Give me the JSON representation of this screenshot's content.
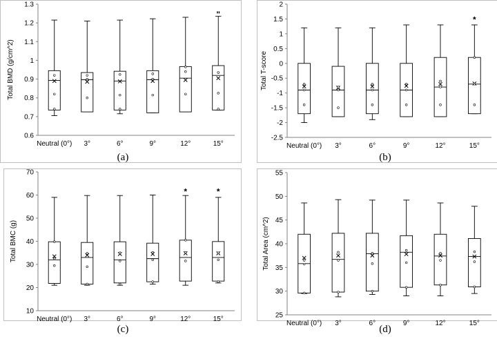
{
  "chart_data": [
    {
      "type": "box",
      "panel_label": "(a)",
      "ylabel": "Total BMD (g/cm^2)",
      "categories": [
        "Neutral (0°)",
        "3°",
        "6°",
        "9°",
        "12°",
        "15°"
      ],
      "ylim": [
        0.6,
        1.3
      ],
      "yticks": [
        "0.6",
        "0.7",
        "0.8",
        "0.9",
        "1",
        "1.1",
        "1.2",
        "1.3"
      ],
      "boxes": [
        {
          "min": 0.705,
          "q1": 0.735,
          "median": 0.893,
          "q3": 0.945,
          "max": 1.215,
          "mean": 0.89,
          "points": [
            0.92,
            0.82,
            0.74
          ]
        },
        {
          "min": 0.725,
          "q1": 0.725,
          "median": 0.897,
          "q3": 0.935,
          "max": 1.21,
          "mean": 0.886,
          "points": [
            0.92,
            0.8,
            0.9
          ]
        },
        {
          "min": 0.715,
          "q1": 0.735,
          "median": 0.89,
          "q3": 0.942,
          "max": 1.215,
          "mean": 0.888,
          "points": [
            0.925,
            0.815,
            0.74
          ]
        },
        {
          "min": 0.72,
          "q1": 0.72,
          "median": 0.897,
          "q3": 0.945,
          "max": 1.222,
          "mean": 0.89,
          "points": [
            0.928,
            0.815,
            0.9
          ]
        },
        {
          "min": 0.725,
          "q1": 0.725,
          "median": 0.905,
          "q3": 0.967,
          "max": 1.23,
          "mean": 0.895,
          "points": [
            0.94,
            0.82,
            0.965
          ]
        },
        {
          "min": 0.735,
          "q1": 0.735,
          "median": 0.92,
          "q3": 0.972,
          "max": 1.235,
          "mean": 0.905,
          "points": [
            0.935,
            0.825,
            0.74
          ]
        }
      ],
      "annotations": [
        {
          "category_index": 5,
          "value": 1.245,
          "text": "\""
        }
      ]
    },
    {
      "type": "box",
      "panel_label": "(b)",
      "ylabel": "Total T-score",
      "categories": [
        "Neutral (0°)",
        "3°",
        "6°",
        "9°",
        "12°",
        "15°"
      ],
      "ylim": [
        -2.5,
        2
      ],
      "yticks": [
        "-2.5",
        "-2",
        "-1.5",
        "-1",
        "-0.5",
        "0",
        "0.5",
        "1",
        "1.5",
        "2"
      ],
      "boxes": [
        {
          "min": -2.0,
          "q1": -1.7,
          "median": -0.9,
          "q3": 0.0,
          "max": 1.2,
          "mean": -0.78,
          "points": [
            -0.7,
            -1.4,
            -0.9
          ]
        },
        {
          "min": -1.8,
          "q1": -1.8,
          "median": -0.9,
          "q3": -0.1,
          "max": 1.2,
          "mean": -0.82,
          "points": [
            -0.8,
            -1.5,
            -0.9
          ]
        },
        {
          "min": -1.9,
          "q1": -1.7,
          "median": -0.9,
          "q3": 0.0,
          "max": 1.2,
          "mean": -0.78,
          "points": [
            -0.7,
            -1.4,
            -0.9
          ]
        },
        {
          "min": -1.8,
          "q1": -1.8,
          "median": -0.9,
          "q3": 0.0,
          "max": 1.3,
          "mean": -0.76,
          "points": [
            -0.7,
            -1.4,
            -0.9
          ]
        },
        {
          "min": -1.8,
          "q1": -1.8,
          "median": -0.8,
          "q3": 0.2,
          "max": 1.3,
          "mean": -0.7,
          "points": [
            -0.6,
            -1.4,
            -0.8
          ]
        },
        {
          "min": -1.7,
          "q1": -1.7,
          "median": -0.7,
          "q3": 0.2,
          "max": 1.3,
          "mean": -0.68,
          "points": [
            -0.7,
            -1.4,
            0.2
          ]
        }
      ],
      "annotations": [
        {
          "category_index": 5,
          "value": 1.48,
          "text": "*"
        }
      ]
    },
    {
      "type": "box",
      "panel_label": "(c)",
      "ylabel": "Total BMC (g)",
      "categories": [
        "Neutral (0°)",
        "3°",
        "6°",
        "9°",
        "12°",
        "15°"
      ],
      "ylim": [
        10,
        70
      ],
      "yticks": [
        "10",
        "20",
        "30",
        "40",
        "50",
        "60",
        "70"
      ],
      "boxes": [
        {
          "min": 21,
          "q1": 21.8,
          "median": 32,
          "q3": 39.8,
          "max": 59,
          "mean": 33.5,
          "points": [
            32.5,
            29.5,
            39.8
          ]
        },
        {
          "min": 21,
          "q1": 21.5,
          "median": 33,
          "q3": 39.5,
          "max": 59.8,
          "mean": 34,
          "points": [
            34.8,
            29,
            21.5
          ]
        },
        {
          "min": 21,
          "q1": 22,
          "median": 32,
          "q3": 39.8,
          "max": 59.8,
          "mean": 34.5,
          "points": [
            35,
            31.5,
            21.5
          ]
        },
        {
          "min": 21.5,
          "q1": 22.5,
          "median": 32.5,
          "q3": 39.2,
          "max": 60,
          "mean": 34.5,
          "points": [
            35.2,
            32,
            22.5
          ]
        },
        {
          "min": 21,
          "q1": 22.8,
          "median": 33,
          "q3": 40.5,
          "max": 59.8,
          "mean": 34.8,
          "points": [
            35.2,
            31.5,
            40.5
          ]
        },
        {
          "min": 22,
          "q1": 22.8,
          "median": 33,
          "q3": 39.9,
          "max": 59,
          "mean": 34.8,
          "points": [
            35,
            32,
            22.5
          ]
        }
      ],
      "annotations": [
        {
          "category_index": 4,
          "value": 61.5,
          "text": "*"
        },
        {
          "category_index": 5,
          "value": 61.5,
          "text": "*"
        }
      ]
    },
    {
      "type": "box",
      "panel_label": "(d)",
      "ylabel": "Total Area (cm^2)",
      "categories": [
        "Neutral (0°)",
        "3°",
        "6°",
        "9°",
        "12°",
        "15°"
      ],
      "ylim": [
        25,
        55
      ],
      "yticks": [
        "25",
        "30",
        "35",
        "40",
        "45",
        "50",
        "55"
      ],
      "boxes": [
        {
          "min": 29.5,
          "q1": 29.6,
          "median": 35.8,
          "q3": 42,
          "max": 48.6,
          "mean": 37,
          "points": [
            36.5,
            29.6,
            35.7
          ]
        },
        {
          "min": 28.8,
          "q1": 29.8,
          "median": 36.7,
          "q3": 42.2,
          "max": 49.3,
          "mean": 37.5,
          "points": [
            38.2,
            36.5,
            29.8
          ]
        },
        {
          "min": 29.3,
          "q1": 30,
          "median": 37.9,
          "q3": 42.2,
          "max": 49.2,
          "mean": 37.5,
          "points": [
            38,
            35.8,
            30
          ]
        },
        {
          "min": 29,
          "q1": 30.8,
          "median": 38.2,
          "q3": 41.7,
          "max": 49.2,
          "mean": 37.8,
          "points": [
            38.6,
            36,
            30.8
          ]
        },
        {
          "min": 29,
          "q1": 31.3,
          "median": 37.4,
          "q3": 42,
          "max": 48.6,
          "mean": 37.5,
          "points": [
            38,
            36.5,
            31.3
          ]
        },
        {
          "min": 29.5,
          "q1": 30.9,
          "median": 37.3,
          "q3": 41.1,
          "max": 47.9,
          "mean": 37.3,
          "points": [
            38.3,
            36.2,
            30.9
          ]
        }
      ],
      "annotations": []
    }
  ]
}
